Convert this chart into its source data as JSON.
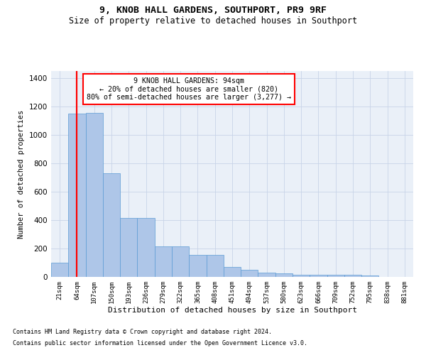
{
  "title": "9, KNOB HALL GARDENS, SOUTHPORT, PR9 9RF",
  "subtitle": "Size of property relative to detached houses in Southport",
  "xlabel": "Distribution of detached houses by size in Southport",
  "ylabel": "Number of detached properties",
  "categories": [
    "21sqm",
    "64sqm",
    "107sqm",
    "150sqm",
    "193sqm",
    "236sqm",
    "279sqm",
    "322sqm",
    "365sqm",
    "408sqm",
    "451sqm",
    "494sqm",
    "537sqm",
    "580sqm",
    "623sqm",
    "666sqm",
    "709sqm",
    "752sqm",
    "795sqm",
    "838sqm",
    "881sqm"
  ],
  "values": [
    100,
    1150,
    1155,
    730,
    415,
    415,
    215,
    215,
    155,
    155,
    70,
    50,
    30,
    25,
    15,
    15,
    15,
    15,
    10,
    0,
    0
  ],
  "bar_color": "#aec6e8",
  "bar_edge_color": "#5b9bd5",
  "red_line_index": 1,
  "ylim": [
    0,
    1450
  ],
  "yticks": [
    0,
    200,
    400,
    600,
    800,
    1000,
    1200,
    1400
  ],
  "annotation_box_text": "9 KNOB HALL GARDENS: 94sqm\n← 20% of detached houses are smaller (820)\n80% of semi-detached houses are larger (3,277) →",
  "footer_line1": "Contains HM Land Registry data © Crown copyright and database right 2024.",
  "footer_line2": "Contains public sector information licensed under the Open Government Licence v3.0.",
  "background_color": "#ffffff",
  "plot_bg_color": "#eaf0f8",
  "grid_color": "#c8d4e8"
}
